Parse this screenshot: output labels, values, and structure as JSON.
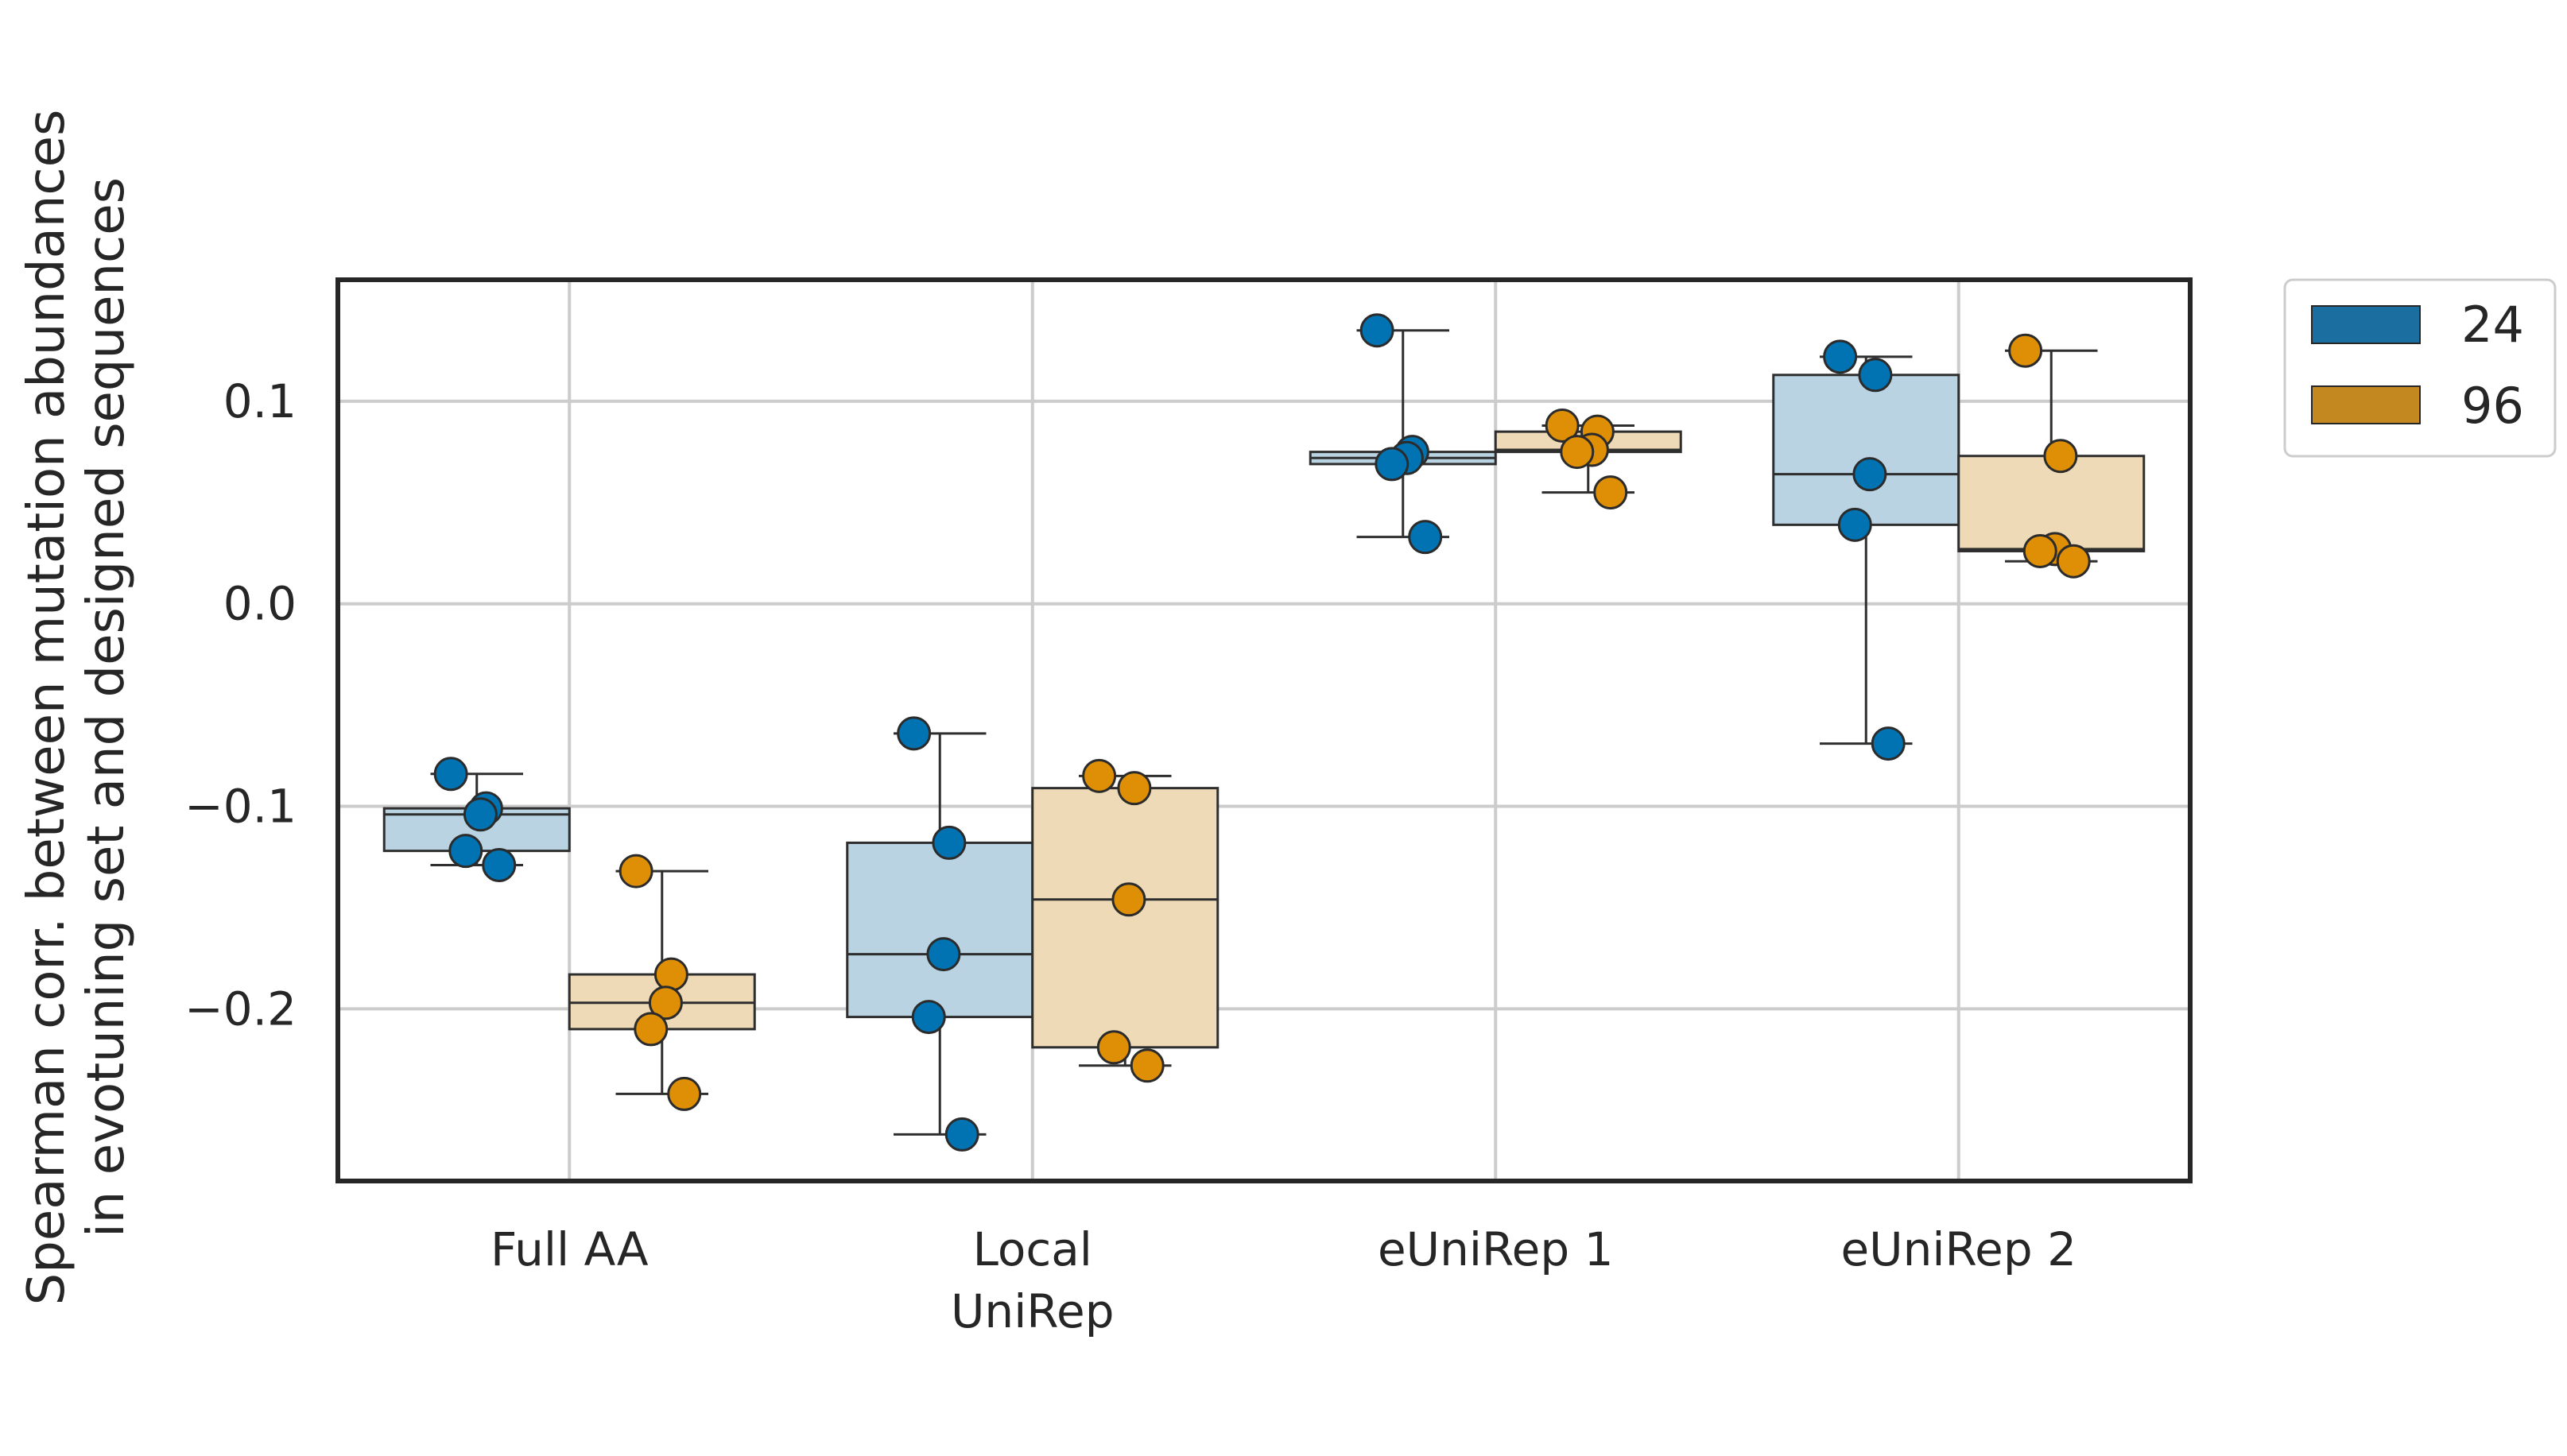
{
  "chart_data": {
    "type": "box",
    "ylabel_lines": [
      "Spearman corr. between mutation abundances",
      "in evotuning set and designed sequences"
    ],
    "xlabel": "",
    "categories": [
      {
        "lines": [
          "Full AA"
        ]
      },
      {
        "lines": [
          "Local",
          "UniRep"
        ]
      },
      {
        "lines": [
          "eUniRep 1"
        ]
      },
      {
        "lines": [
          "eUniRep 2"
        ]
      }
    ],
    "ylim": [
      -0.285,
      0.16
    ],
    "yticks": [
      0.1,
      0.0,
      -0.1,
      -0.2
    ],
    "ytick_labels": [
      "0.1",
      "0.0",
      "−0.1",
      "−0.2"
    ],
    "grid": true,
    "legend_position": "outside-right-top",
    "series": [
      {
        "name": "24",
        "color": "#0173b2",
        "legend_color": "#1a6fa0",
        "box_fill": "#b9d3e2",
        "boxes": [
          {
            "q1": -0.122,
            "median": -0.104,
            "q3": -0.101,
            "whislo": -0.129,
            "whishi": -0.084
          },
          {
            "q1": -0.204,
            "median": -0.173,
            "q3": -0.118,
            "whislo": -0.262,
            "whishi": -0.064
          },
          {
            "q1": 0.069,
            "median": 0.072,
            "q3": 0.075,
            "whislo": 0.033,
            "whishi": 0.135
          },
          {
            "q1": 0.039,
            "median": 0.064,
            "q3": 0.113,
            "whislo": -0.069,
            "whishi": 0.122
          }
        ],
        "points": [
          [
            -0.084,
            -0.101,
            -0.104,
            -0.122,
            -0.129
          ],
          [
            -0.064,
            -0.118,
            -0.173,
            -0.204,
            -0.262
          ],
          [
            0.135,
            0.075,
            0.072,
            0.069,
            0.033
          ],
          [
            0.122,
            0.113,
            0.064,
            0.039,
            -0.069
          ]
        ]
      },
      {
        "name": "96",
        "color": "#de8f05",
        "legend_color": "#c38820",
        "box_fill": "#eedab6",
        "boxes": [
          {
            "q1": -0.21,
            "median": -0.197,
            "q3": -0.183,
            "whislo": -0.242,
            "whishi": -0.132
          },
          {
            "q1": -0.219,
            "median": -0.146,
            "q3": -0.091,
            "whislo": -0.228,
            "whishi": -0.085
          },
          {
            "q1": 0.075,
            "median": 0.076,
            "q3": 0.085,
            "whislo": 0.055,
            "whishi": 0.088
          },
          {
            "q1": 0.026,
            "median": 0.027,
            "q3": 0.073,
            "whislo": 0.021,
            "whishi": 0.125
          }
        ],
        "points": [
          [
            -0.132,
            -0.183,
            -0.197,
            -0.21,
            -0.242
          ],
          [
            -0.085,
            -0.091,
            -0.146,
            -0.219,
            -0.228
          ],
          [
            0.088,
            0.085,
            0.076,
            0.075,
            0.055
          ],
          [
            0.125,
            0.073,
            0.027,
            0.026,
            0.021
          ]
        ]
      }
    ]
  }
}
